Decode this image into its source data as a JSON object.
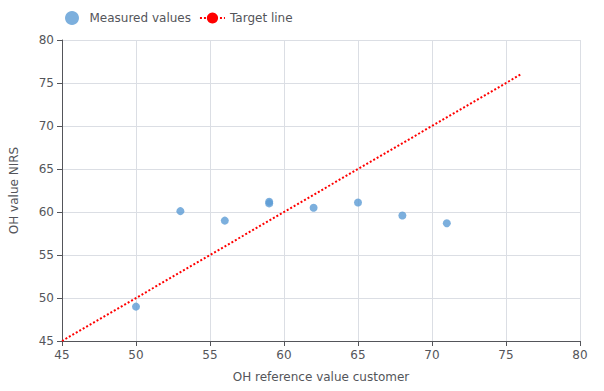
{
  "chart_data": {
    "type": "scatter",
    "xlabel": "OH reference value customer",
    "ylabel": "OH value NIRS",
    "xlim": [
      45,
      80
    ],
    "ylim": [
      45,
      80
    ],
    "xticks": [
      45,
      50,
      55,
      60,
      65,
      70,
      75,
      80
    ],
    "yticks": [
      45,
      50,
      55,
      60,
      65,
      70,
      75,
      80
    ],
    "grid": true,
    "legend": "upper left",
    "series": [
      {
        "name": "Measured values",
        "type": "scatter",
        "color": "#5b9bd5",
        "marker": "circle",
        "x": [
          50,
          53,
          56,
          59,
          59,
          62,
          65,
          68,
          71
        ],
        "values": [
          49.0,
          60.1,
          59.0,
          61.2,
          61.0,
          60.5,
          61.1,
          59.6,
          58.7
        ]
      },
      {
        "name": "Target line",
        "type": "line",
        "color": "#ff0000",
        "line_style": "dotted",
        "x": [
          45,
          76
        ],
        "values": [
          45,
          76
        ]
      }
    ]
  }
}
